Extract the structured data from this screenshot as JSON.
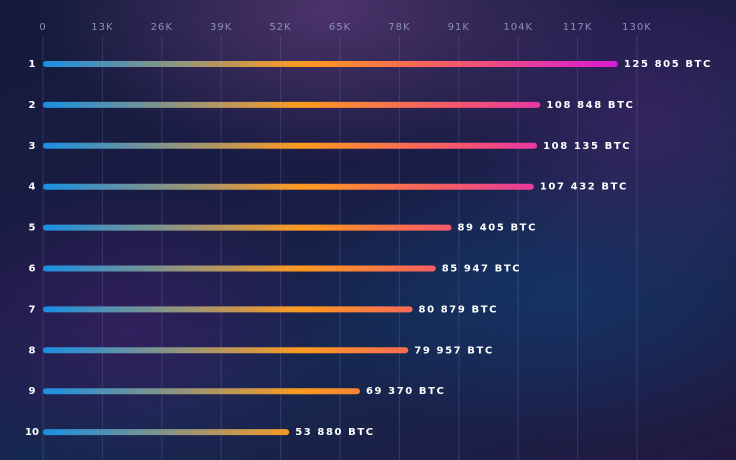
{
  "chart_data": {
    "type": "barh",
    "categories": [
      "1",
      "2",
      "3",
      "4",
      "5",
      "6",
      "7",
      "8",
      "9",
      "10"
    ],
    "values": [
      125805,
      108848,
      108135,
      107432,
      89405,
      85947,
      80879,
      79957,
      69370,
      53880
    ],
    "value_labels": [
      "125 805 BTC",
      "108 848 BTC",
      "108 135 BTC",
      "107 432 BTC",
      "89 405 BTC",
      "85 947 BTC",
      "80 879 BTC",
      "79 957 BTC",
      "69 370 BTC",
      "53 880 BTC"
    ],
    "colors": [
      "#1a8fe3",
      "#ff9a1f",
      "#f4566e",
      "#d81bd6"
    ],
    "xlim": [
      0,
      130000
    ],
    "xticks": [
      0,
      {
        "value": 13000,
        "label": "13K"
      },
      {
        "value": 26000,
        "label": "26K"
      },
      {
        "value": 39000,
        "label": "39K"
      },
      {
        "value": 52000,
        "label": "52K"
      },
      {
        "value": 65000,
        "label": "65K"
      },
      {
        "value": 78000,
        "label": "78K"
      },
      {
        "value": 91000,
        "label": "91K"
      },
      {
        "value": 104000,
        "label": "104K"
      },
      {
        "value": 117000,
        "label": "117K"
      },
      {
        "value": 130000,
        "label": "130K"
      }
    ],
    "grid": true
  }
}
